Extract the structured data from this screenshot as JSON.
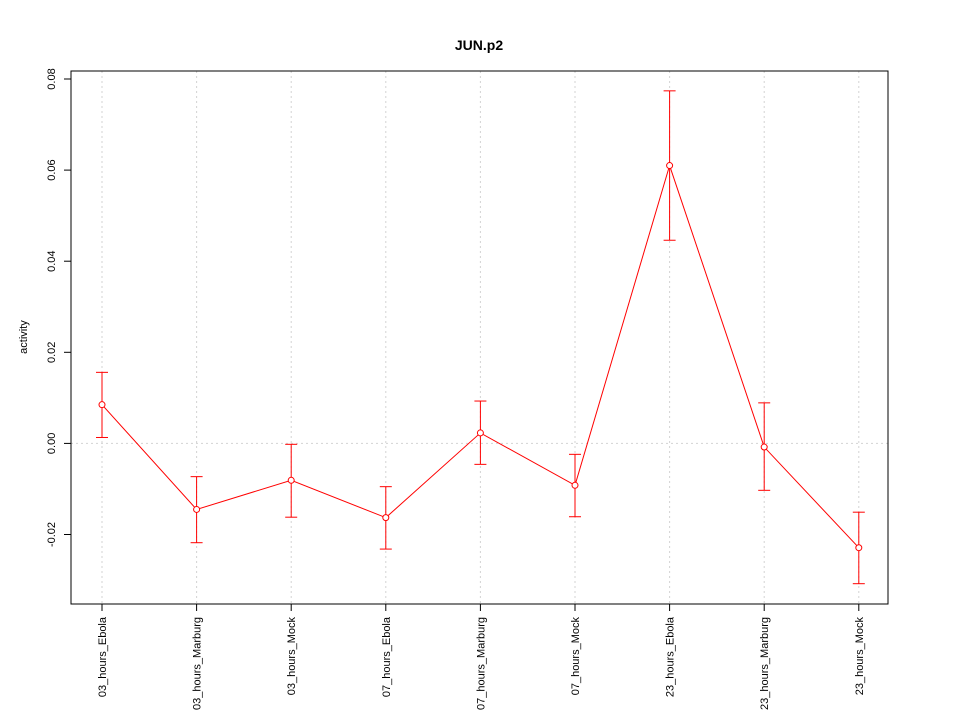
{
  "chart_data": {
    "type": "line",
    "title": "JUN.p2",
    "xlabel": "",
    "ylabel": "activity",
    "categories": [
      "03_hours_Ebola",
      "03_hours_Marburg",
      "03_hours_Mock",
      "07_hours_Ebola",
      "07_hours_Marburg",
      "07_hours_Mock",
      "23_hours_Ebola",
      "23_hours_Marburg",
      "23_hours_Mock"
    ],
    "series": [
      {
        "values": [
          0.0085,
          -0.0145,
          -0.0081,
          -0.0163,
          0.0023,
          -0.0092,
          0.061,
          -0.0008,
          -0.0229
        ],
        "upper": [
          0.0156,
          -0.0073,
          -0.0002,
          -0.0095,
          0.0093,
          -0.0024,
          0.0774,
          0.0089,
          -0.0151
        ],
        "lower": [
          0.0013,
          -0.0218,
          -0.0162,
          -0.0232,
          -0.0046,
          -0.0161,
          0.0446,
          -0.0103,
          -0.0308
        ]
      }
    ],
    "ylim": [
      -0.035,
      0.08
    ],
    "yticks": [
      -0.02,
      0.0,
      0.02,
      0.04,
      0.06,
      0.08
    ],
    "ytick_labels": [
      "-0.02",
      "0.00",
      "0.02",
      "0.04",
      "0.06",
      "0.08"
    ],
    "grid": true,
    "colors": {
      "series": "#ff0000",
      "grid": "#d3d3d3",
      "axis": "#000000"
    }
  }
}
